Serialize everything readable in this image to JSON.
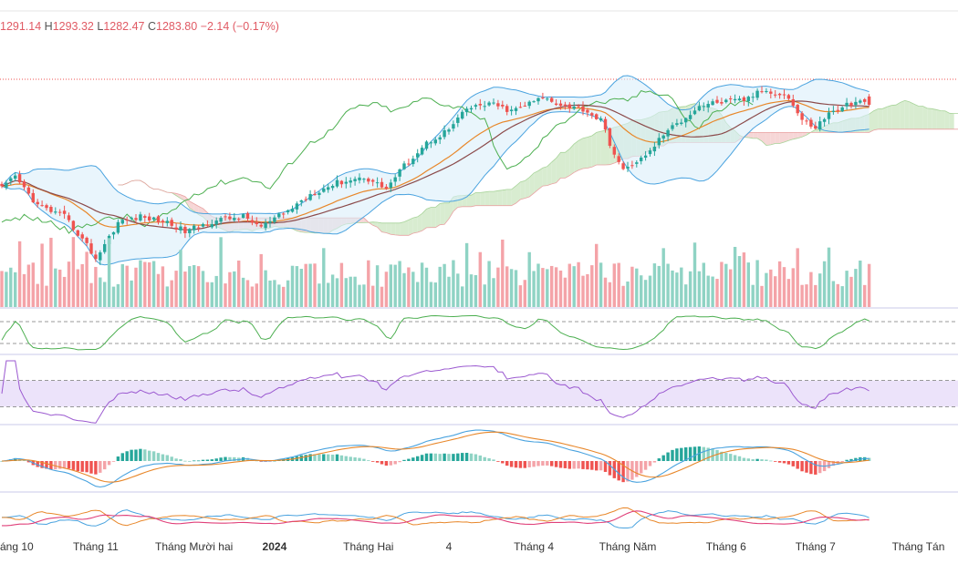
{
  "legend": {
    "open_value": "1291.14",
    "high_key": "H",
    "high_value": "1293.32",
    "low_key": "L",
    "low_value": "1282.47",
    "close_key": "C",
    "close_value": "1283.80",
    "change": "−2.14 (−0.17%)"
  },
  "colors": {
    "up": "#26a69a",
    "down": "#ef5350",
    "vol_up": "#8fd3c4",
    "vol_down": "#f4a3a8",
    "bollinger": "#4aa3df",
    "bollinger_fill": "#dbeefa",
    "ema_fast": "#e8872a",
    "ema_slow": "#8b4a4a",
    "ichimoku_bull": "#d8ecd0",
    "ichimoku_bear": "#f6d6d6",
    "lagging_span": "#4caf50",
    "rsi": "#9b59d0",
    "rsi_band": "#ece3fa",
    "macd": "#4aa3df",
    "signal": "#e8872a",
    "di_plus": "#4aa3df",
    "di_minus": "#e8872a",
    "adx": "#e0407a"
  },
  "chart_data": {
    "type": "candlestick",
    "subtype": "daily price chart with Bollinger Bands, moving averages, Ichimoku cloud, volume, stochastic, RSI, MACD and DMI panels",
    "x_tick_labels": [
      {
        "label": "áng 10",
        "at_candle": 0,
        "bold": false
      },
      {
        "label": "Tháng 11",
        "at_candle": 21,
        "bold": false
      },
      {
        "label": "Tháng Mười hai",
        "at_candle": 43,
        "bold": false
      },
      {
        "label": "2024",
        "at_candle": 61,
        "bold": true
      },
      {
        "label": "Tháng Hai",
        "at_candle": 82,
        "bold": false
      },
      {
        "label": "4",
        "at_candle": 100,
        "bold": false
      },
      {
        "label": "Tháng 4",
        "at_candle": 119,
        "bold": false
      },
      {
        "label": "Tháng Năm",
        "at_candle": 140,
        "bold": false
      },
      {
        "label": "Tháng 6",
        "at_candle": 162,
        "bold": false
      },
      {
        "label": "Tháng 7",
        "at_candle": 182,
        "bold": false
      },
      {
        "label": "Tháng Tán",
        "at_candle": 205,
        "bold": false
      }
    ],
    "price_y_range": [
      1135,
      1320
    ],
    "price_anchors": [
      [
        0,
        1210
      ],
      [
        3,
        1220
      ],
      [
        8,
        1195
      ],
      [
        14,
        1185
      ],
      [
        19,
        1160
      ],
      [
        21,
        1148
      ],
      [
        26,
        1180
      ],
      [
        31,
        1185
      ],
      [
        37,
        1180
      ],
      [
        41,
        1172
      ],
      [
        48,
        1182
      ],
      [
        54,
        1185
      ],
      [
        58,
        1176
      ],
      [
        64,
        1190
      ],
      [
        69,
        1205
      ],
      [
        75,
        1215
      ],
      [
        81,
        1220
      ],
      [
        86,
        1210
      ],
      [
        90,
        1230
      ],
      [
        95,
        1250
      ],
      [
        100,
        1262
      ],
      [
        104,
        1280
      ],
      [
        109,
        1285
      ],
      [
        114,
        1278
      ],
      [
        118,
        1285
      ],
      [
        121,
        1290
      ],
      [
        126,
        1283
      ],
      [
        130,
        1280
      ],
      [
        134,
        1270
      ],
      [
        137,
        1240
      ],
      [
        139,
        1225
      ],
      [
        141,
        1232
      ],
      [
        144,
        1238
      ],
      [
        148,
        1258
      ],
      [
        152,
        1270
      ],
      [
        156,
        1283
      ],
      [
        160,
        1286
      ],
      [
        166,
        1288
      ],
      [
        170,
        1296
      ],
      [
        174,
        1294
      ],
      [
        176,
        1290
      ],
      [
        179,
        1270
      ],
      [
        182,
        1264
      ],
      [
        185,
        1276
      ],
      [
        189,
        1284
      ],
      [
        192,
        1286
      ],
      [
        194,
        1283.8
      ]
    ],
    "volume_levels": [
      0.35,
      0.9
    ],
    "oscillator_panels": [
      {
        "name": "stochastic",
        "levels": [
          80,
          20
        ],
        "range": [
          0,
          100
        ]
      },
      {
        "name": "rsi",
        "levels": [
          70,
          30
        ],
        "range": [
          0,
          100
        ]
      },
      {
        "name": "macd",
        "range": [
          -1,
          1
        ]
      },
      {
        "name": "dmi",
        "range": [
          0,
          60
        ]
      }
    ]
  }
}
